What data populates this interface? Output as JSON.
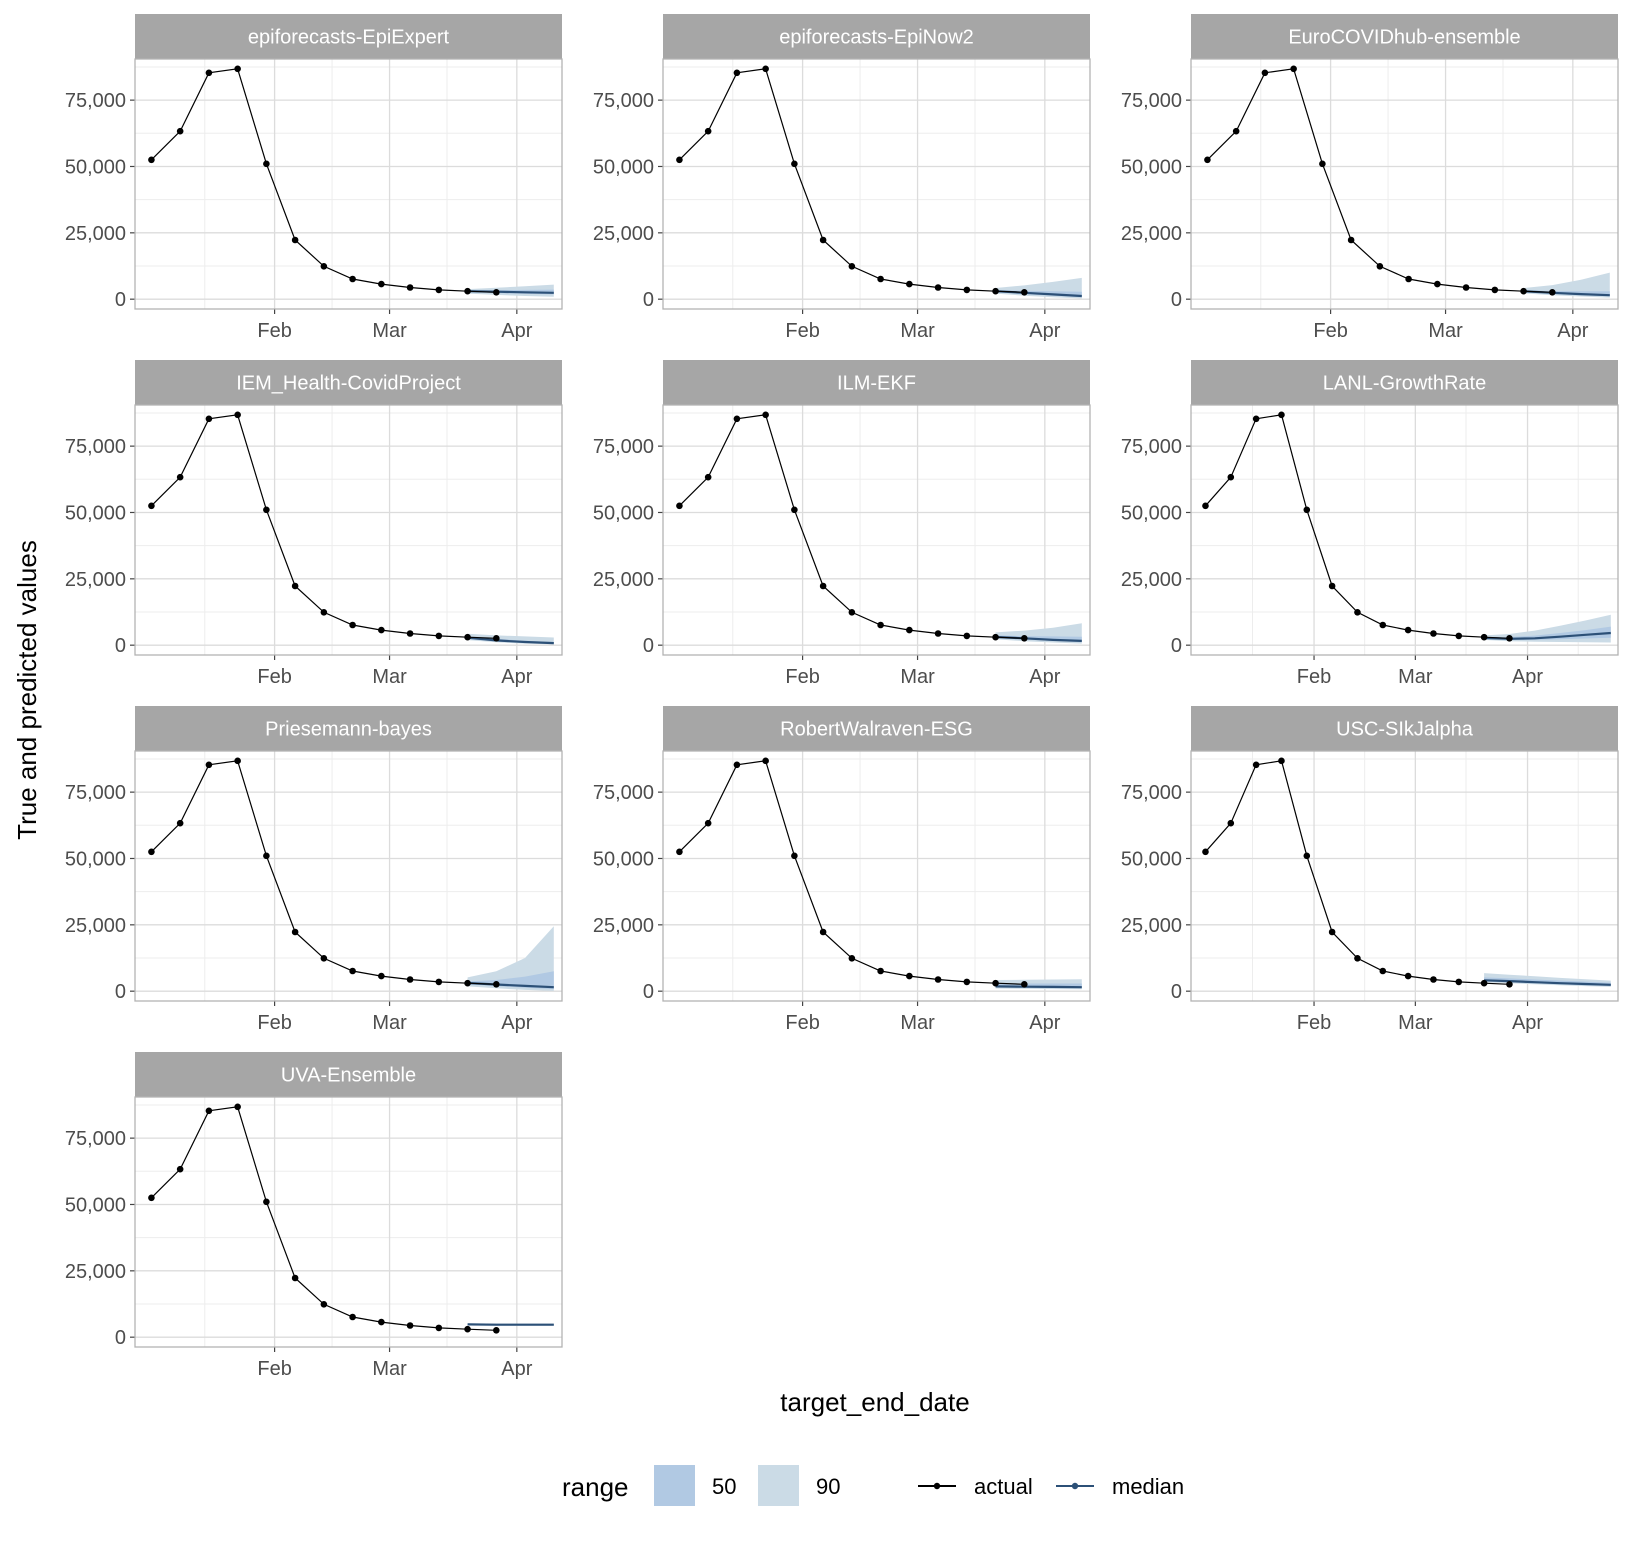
{
  "chart_data": {
    "type": "line",
    "xlabel": "target_end_date",
    "ylabel": "True and predicted values",
    "y_ticks": [
      "0",
      "25,000",
      "50,000",
      "75,000"
    ],
    "y_tick_values": [
      0,
      25000,
      50000,
      75000
    ],
    "ylim": [
      -3700,
      90500
    ],
    "x_ticks": [
      "Feb",
      "Mar",
      "Apr"
    ],
    "x_tick_dates": [
      "2021-02-01",
      "2021-03-01",
      "2021-04-01"
    ],
    "grid": true,
    "legend": {
      "position": "bottom",
      "range_title": "range",
      "range_items": [
        {
          "label": "50",
          "color": "#b1c9e3"
        },
        {
          "label": "90",
          "color": "#cbdbe6"
        }
      ],
      "line_items": [
        {
          "label": "actual",
          "color": "#000000"
        },
        {
          "label": "median",
          "color": "#2c5077"
        }
      ]
    },
    "colors": {
      "actual": "#000000",
      "median": "#2c5077",
      "range_50": "#b1c9e3",
      "range_90": "#cbdbe6",
      "strip": "#a6a6a6"
    },
    "actual": {
      "x": [
        "2021-01-02",
        "2021-01-09",
        "2021-01-16",
        "2021-01-23",
        "2021-01-30",
        "2021-02-06",
        "2021-02-13",
        "2021-02-20",
        "2021-02-27",
        "2021-03-06",
        "2021-03-13",
        "2021-03-20",
        "2021-03-27"
      ],
      "y": [
        52500,
        63300,
        85300,
        86800,
        51000,
        22300,
        12400,
        7600,
        5700,
        4400,
        3500,
        3000,
        2600
      ]
    },
    "panels": [
      {
        "name": "epiforecasts-EpiExpert",
        "xlim": [
          "2020-12-29",
          "2021-04-12"
        ],
        "forecast": {
          "x": [
            "2021-03-20",
            "2021-03-27",
            "2021-04-03",
            "2021-04-10"
          ],
          "median": [
            3000,
            2800,
            2600,
            2400
          ],
          "lower50": [
            2600,
            2300,
            2000,
            1800
          ],
          "upper50": [
            3300,
            3400,
            3500,
            3600
          ],
          "lower90": [
            2100,
            1600,
            1200,
            900
          ],
          "upper90": [
            3800,
            4300,
            4900,
            5500
          ]
        }
      },
      {
        "name": "epiforecasts-EpiNow2",
        "xlim": [
          "2020-12-29",
          "2021-04-12"
        ],
        "forecast": {
          "x": [
            "2021-03-20",
            "2021-03-27",
            "2021-04-03",
            "2021-04-10"
          ],
          "median": [
            3000,
            2400,
            1800,
            1200
          ],
          "lower50": [
            2600,
            1900,
            1300,
            700
          ],
          "upper50": [
            3400,
            3200,
            3000,
            2800
          ],
          "lower90": [
            2100,
            1300,
            700,
            300
          ],
          "upper90": [
            4200,
            5200,
            6500,
            8000
          ]
        }
      },
      {
        "name": "EuroCOVIDhub-ensemble",
        "xlim": [
          "2020-12-29",
          "2021-04-12"
        ],
        "forecast": {
          "x": [
            "2021-03-20",
            "2021-03-27",
            "2021-04-03",
            "2021-04-10"
          ],
          "median": [
            3000,
            2400,
            1900,
            1500
          ],
          "lower50": [
            2600,
            2000,
            1500,
            1100
          ],
          "upper50": [
            3400,
            3100,
            3000,
            3000
          ],
          "lower90": [
            2200,
            1500,
            1000,
            600
          ],
          "upper90": [
            4200,
            5300,
            7300,
            10000
          ]
        }
      },
      {
        "name": "IEM_Health-CovidProject",
        "xlim": [
          "2020-12-29",
          "2021-04-12"
        ],
        "forecast": {
          "x": [
            "2021-03-20",
            "2021-03-27",
            "2021-04-03",
            "2021-04-10"
          ],
          "median": [
            2800,
            1800,
            1200,
            800
          ],
          "lower50": [
            2300,
            1400,
            900,
            500
          ],
          "upper50": [
            3300,
            2400,
            1700,
            1200
          ],
          "lower90": [
            1900,
            1100,
            600,
            300
          ],
          "upper90": [
            4300,
            3700,
            3300,
            2900
          ]
        }
      },
      {
        "name": "ILM-EKF",
        "xlim": [
          "2020-12-29",
          "2021-04-12"
        ],
        "forecast": {
          "x": [
            "2021-03-20",
            "2021-03-27",
            "2021-04-03",
            "2021-04-10"
          ],
          "median": [
            3100,
            2600,
            2000,
            1600
          ],
          "lower50": [
            2700,
            2100,
            1600,
            1100
          ],
          "upper50": [
            3700,
            3400,
            3300,
            3200
          ],
          "lower90": [
            2200,
            1500,
            1000,
            600
          ],
          "upper90": [
            4800,
            5500,
            6600,
            8300
          ]
        }
      },
      {
        "name": "LANL-GrowthRate",
        "xlim": [
          "2020-12-29",
          "2021-04-26"
        ],
        "forecast": {
          "x": [
            "2021-03-20",
            "2021-03-27",
            "2021-04-03",
            "2021-04-10",
            "2021-04-17",
            "2021-04-24"
          ],
          "median": [
            2700,
            2400,
            2600,
            3200,
            3900,
            4600
          ],
          "lower50": [
            2400,
            2000,
            2000,
            2200,
            2500,
            2800
          ],
          "upper50": [
            3100,
            3100,
            3600,
            4600,
            5700,
            7000
          ],
          "lower90": [
            2000,
            1500,
            1300,
            1200,
            1100,
            1000
          ],
          "upper90": [
            3700,
            4200,
            5500,
            7300,
            9300,
            11500
          ]
        }
      },
      {
        "name": "Priesemann-bayes",
        "xlim": [
          "2020-12-29",
          "2021-04-12"
        ],
        "forecast": {
          "x": [
            "2021-03-20",
            "2021-03-27",
            "2021-04-03",
            "2021-04-10"
          ],
          "median": [
            3100,
            2500,
            2000,
            1500
          ],
          "lower50": [
            2600,
            1900,
            1300,
            800
          ],
          "upper50": [
            3700,
            4200,
            5500,
            7500
          ],
          "lower90": [
            1800,
            1100,
            500,
            100
          ],
          "upper90": [
            5200,
            7500,
            12500,
            24500
          ]
        }
      },
      {
        "name": "RobertWalraven-ESG",
        "xlim": [
          "2020-12-29",
          "2021-04-12"
        ],
        "forecast": {
          "x": [
            "2021-03-20",
            "2021-03-27",
            "2021-04-03",
            "2021-04-10"
          ],
          "median": [
            1800,
            1700,
            1600,
            1500
          ],
          "lower50": [
            1500,
            1300,
            1200,
            1100
          ],
          "upper50": [
            2900,
            2900,
            2900,
            2900
          ],
          "lower90": [
            1000,
            900,
            800,
            700
          ],
          "upper90": [
            4200,
            4300,
            4400,
            4500
          ]
        }
      },
      {
        "name": "USC-SIkJalpha",
        "xlim": [
          "2020-12-29",
          "2021-04-26"
        ],
        "forecast": {
          "x": [
            "2021-03-20",
            "2021-03-27",
            "2021-04-03",
            "2021-04-10",
            "2021-04-17",
            "2021-04-24"
          ],
          "median": [
            4100,
            3800,
            3400,
            3000,
            2700,
            2400
          ],
          "lower50": [
            3700,
            3400,
            3000,
            2600,
            2300,
            2000
          ],
          "upper50": [
            5200,
            4800,
            4400,
            4000,
            3600,
            3200
          ],
          "lower90": [
            3300,
            3000,
            2600,
            2200,
            1900,
            1600
          ],
          "upper90": [
            6800,
            6200,
            5600,
            5000,
            4500,
            4000
          ]
        }
      },
      {
        "name": "UVA-Ensemble",
        "xlim": [
          "2020-12-29",
          "2021-04-12"
        ],
        "forecast": {
          "x": [
            "2021-03-20",
            "2021-03-27",
            "2021-04-03",
            "2021-04-10"
          ],
          "median": [
            4800,
            4700,
            4700,
            4700
          ],
          "lower50": [
            4600,
            4500,
            4500,
            4500
          ],
          "upper50": [
            5000,
            4900,
            4900,
            4900
          ],
          "lower90": [
            4400,
            4300,
            4300,
            4300
          ],
          "upper90": [
            5200,
            5100,
            5100,
            5100
          ]
        }
      }
    ]
  }
}
